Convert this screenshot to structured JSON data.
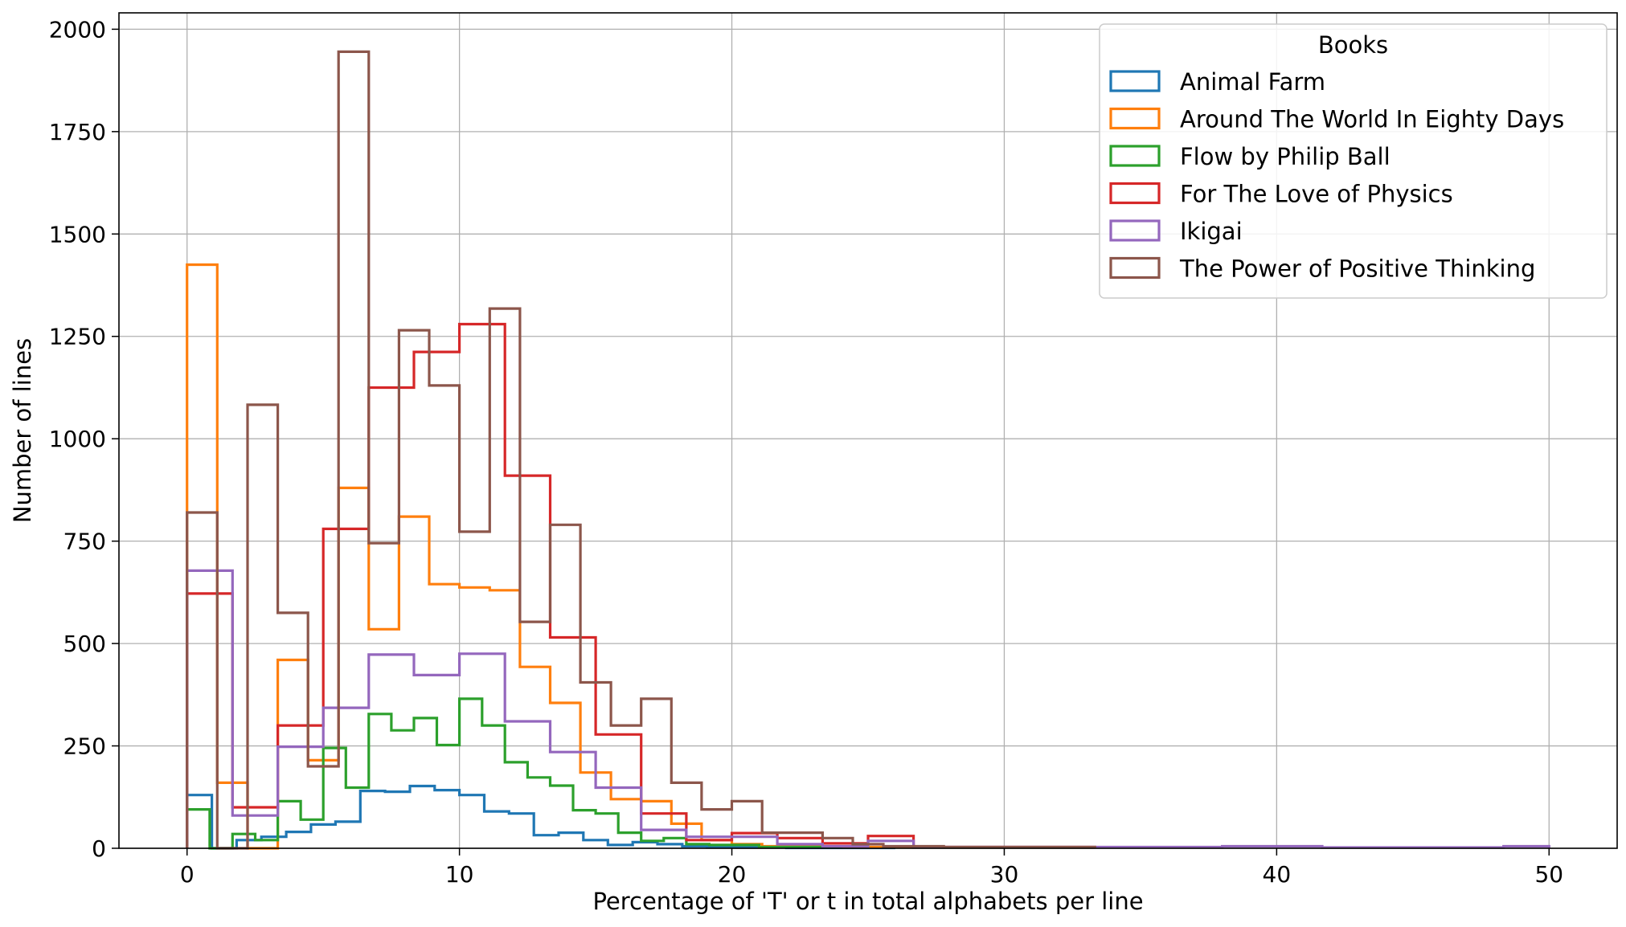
{
  "chart_data": {
    "type": "histogram-step",
    "xlabel": "Percentage of 'T' or t in total alphabets per line",
    "ylabel": "Number of lines",
    "xlim": [
      -2.5,
      52.5
    ],
    "ylim": [
      0,
      2040
    ],
    "xticks": [
      0,
      10,
      20,
      30,
      40,
      50
    ],
    "yticks": [
      0,
      250,
      500,
      750,
      1000,
      1250,
      1500,
      1750,
      2000
    ],
    "grid": true,
    "legend": {
      "title": "Books",
      "placement": "top-right"
    },
    "series": [
      {
        "name": "Animal Farm",
        "color": "#1f77b4",
        "bins": [
          [
            0,
            0.91,
            130
          ],
          [
            0.91,
            1.82,
            0
          ],
          [
            1.82,
            2.73,
            20
          ],
          [
            2.73,
            3.64,
            28
          ],
          [
            3.64,
            4.55,
            40
          ],
          [
            4.55,
            5.45,
            58
          ],
          [
            5.45,
            6.36,
            65
          ],
          [
            6.36,
            7.27,
            140
          ],
          [
            7.27,
            8.18,
            138
          ],
          [
            8.18,
            9.09,
            152
          ],
          [
            9.09,
            10.0,
            142
          ],
          [
            10.0,
            10.91,
            130
          ],
          [
            10.91,
            11.82,
            90
          ],
          [
            11.82,
            12.73,
            85
          ],
          [
            12.73,
            13.64,
            32
          ],
          [
            13.64,
            14.55,
            38
          ],
          [
            14.55,
            15.45,
            20
          ],
          [
            15.45,
            16.36,
            8
          ],
          [
            16.36,
            17.27,
            15
          ],
          [
            17.27,
            18.18,
            10
          ],
          [
            18.18,
            19.09,
            5
          ],
          [
            19.09,
            20.0,
            3
          ],
          [
            20.0,
            22.0,
            2
          ],
          [
            22.0,
            26.0,
            1
          ]
        ]
      },
      {
        "name": "Around The World In Eighty Days",
        "color": "#ff7f0e",
        "bins": [
          [
            0,
            1.11,
            1425
          ],
          [
            1.11,
            2.22,
            160
          ],
          [
            2.22,
            3.33,
            0
          ],
          [
            3.33,
            4.44,
            460
          ],
          [
            4.44,
            5.56,
            215
          ],
          [
            5.56,
            6.67,
            880
          ],
          [
            6.67,
            7.78,
            535
          ],
          [
            7.78,
            8.89,
            810
          ],
          [
            8.89,
            10.0,
            645
          ],
          [
            10.0,
            11.11,
            637
          ],
          [
            11.11,
            12.22,
            630
          ],
          [
            12.22,
            13.33,
            443
          ],
          [
            13.33,
            14.44,
            355
          ],
          [
            14.44,
            15.56,
            185
          ],
          [
            15.56,
            16.67,
            120
          ],
          [
            16.67,
            17.78,
            115
          ],
          [
            17.78,
            18.89,
            60
          ],
          [
            18.89,
            20.0,
            20
          ],
          [
            20.0,
            21.11,
            10
          ],
          [
            21.11,
            23.33,
            5
          ],
          [
            23.33,
            26.67,
            3
          ],
          [
            26.67,
            33.33,
            2
          ]
        ]
      },
      {
        "name": "Flow by Philip Ball",
        "color": "#2ca02c",
        "bins": [
          [
            0,
            0.83,
            95
          ],
          [
            0.83,
            1.67,
            0
          ],
          [
            1.67,
            2.5,
            35
          ],
          [
            2.5,
            3.33,
            20
          ],
          [
            3.33,
            4.17,
            115
          ],
          [
            4.17,
            5.0,
            70
          ],
          [
            5.0,
            5.83,
            245
          ],
          [
            5.83,
            6.67,
            148
          ],
          [
            6.67,
            7.5,
            328
          ],
          [
            7.5,
            8.33,
            288
          ],
          [
            8.33,
            9.17,
            318
          ],
          [
            9.17,
            10.0,
            252
          ],
          [
            10.0,
            10.83,
            365
          ],
          [
            10.83,
            11.67,
            300
          ],
          [
            11.67,
            12.5,
            210
          ],
          [
            12.5,
            13.33,
            173
          ],
          [
            13.33,
            14.17,
            153
          ],
          [
            14.17,
            15.0,
            93
          ],
          [
            15.0,
            15.83,
            85
          ],
          [
            15.83,
            16.67,
            38
          ],
          [
            16.67,
            17.5,
            18
          ],
          [
            17.5,
            18.33,
            25
          ],
          [
            18.33,
            19.17,
            10
          ],
          [
            19.17,
            21.0,
            8
          ],
          [
            21.0,
            24.0,
            3
          ]
        ]
      },
      {
        "name": "For The Love of Physics",
        "color": "#d62728",
        "bins": [
          [
            0,
            1.67,
            622
          ],
          [
            1.67,
            3.33,
            100
          ],
          [
            3.33,
            5.0,
            300
          ],
          [
            5.0,
            6.67,
            780
          ],
          [
            6.67,
            8.33,
            1125
          ],
          [
            8.33,
            10.0,
            1212
          ],
          [
            10.0,
            11.67,
            1280
          ],
          [
            11.67,
            13.33,
            910
          ],
          [
            13.33,
            15.0,
            515
          ],
          [
            15.0,
            16.67,
            278
          ],
          [
            16.67,
            18.33,
            85
          ],
          [
            18.33,
            20.0,
            20
          ],
          [
            20.0,
            21.67,
            37
          ],
          [
            21.67,
            23.33,
            25
          ],
          [
            23.33,
            25.0,
            12
          ],
          [
            25.0,
            26.67,
            30
          ],
          [
            26.67,
            33.33,
            3
          ]
        ]
      },
      {
        "name": "Ikigai",
        "color": "#9467bd",
        "bins": [
          [
            0,
            1.67,
            678
          ],
          [
            1.67,
            3.33,
            80
          ],
          [
            3.33,
            5.0,
            248
          ],
          [
            5.0,
            6.67,
            343
          ],
          [
            6.67,
            8.33,
            473
          ],
          [
            8.33,
            10.0,
            423
          ],
          [
            10.0,
            11.67,
            475
          ],
          [
            11.67,
            13.33,
            310
          ],
          [
            13.33,
            15.0,
            235
          ],
          [
            15.0,
            16.67,
            148
          ],
          [
            16.67,
            18.33,
            45
          ],
          [
            18.33,
            20.0,
            28
          ],
          [
            20.0,
            21.67,
            28
          ],
          [
            21.67,
            23.33,
            10
          ],
          [
            23.33,
            25.0,
            5
          ],
          [
            25.0,
            26.67,
            18
          ],
          [
            26.67,
            38.0,
            3
          ],
          [
            38.0,
            41.67,
            5
          ],
          [
            41.67,
            48.33,
            2
          ],
          [
            48.33,
            50.0,
            5
          ]
        ]
      },
      {
        "name": "The Power of Positive Thinking",
        "color": "#8c564b",
        "bins": [
          [
            0,
            1.11,
            820
          ],
          [
            1.11,
            2.22,
            0
          ],
          [
            2.22,
            3.33,
            1083
          ],
          [
            3.33,
            4.44,
            575
          ],
          [
            4.44,
            5.56,
            200
          ],
          [
            5.56,
            6.67,
            1945
          ],
          [
            6.67,
            7.78,
            745
          ],
          [
            7.78,
            8.89,
            1265
          ],
          [
            8.89,
            10.0,
            1130
          ],
          [
            10.0,
            11.11,
            773
          ],
          [
            11.11,
            12.22,
            1318
          ],
          [
            12.22,
            13.33,
            553
          ],
          [
            13.33,
            14.44,
            790
          ],
          [
            14.44,
            15.56,
            405
          ],
          [
            15.56,
            16.67,
            300
          ],
          [
            16.67,
            17.78,
            365
          ],
          [
            17.78,
            18.89,
            160
          ],
          [
            18.89,
            20.0,
            95
          ],
          [
            20.0,
            21.11,
            115
          ],
          [
            21.11,
            23.33,
            38
          ],
          [
            23.33,
            24.44,
            25
          ],
          [
            24.44,
            25.56,
            10
          ],
          [
            25.56,
            27.78,
            5
          ],
          [
            27.78,
            33.33,
            3
          ]
        ]
      }
    ]
  }
}
